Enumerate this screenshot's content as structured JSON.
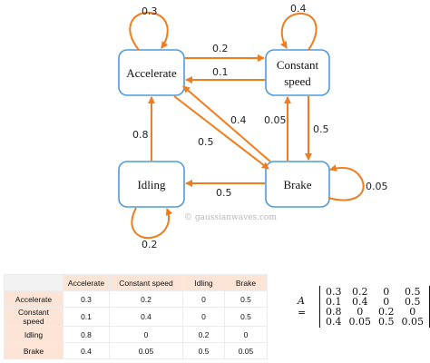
{
  "diagram": {
    "states": {
      "accelerate": "Accelerate",
      "constant_line1": "Constant",
      "constant_line2": "speed",
      "idling": "Idling",
      "brake": "Brake"
    },
    "edges": {
      "acc_self": "0.3",
      "const_self": "0.4",
      "acc_to_const": "0.2",
      "const_to_acc": "0.1",
      "brake_to_acc": "0.4",
      "acc_to_brake": "0.5",
      "brake_to_const": "0.05",
      "const_to_brake": "0.5",
      "idle_to_acc": "0.8",
      "brake_to_idle": "0.5",
      "brake_self": "0.05",
      "idle_self": "0.2"
    },
    "watermark": "© gaussianwaves.com",
    "colors": {
      "node_border": "#4f9bd9",
      "arrow": "#f07c1d"
    }
  },
  "table": {
    "columns": [
      "Accelerate",
      "Constant speed",
      "Idling",
      "Brake"
    ],
    "rows": [
      {
        "label": "Accelerate",
        "values": [
          "0.3",
          "0.2",
          "0",
          "0.5"
        ]
      },
      {
        "label": "Constant speed",
        "values": [
          "0.1",
          "0.4",
          "0",
          "0.5"
        ]
      },
      {
        "label": "Idling",
        "values": [
          "0.8",
          "0",
          "0.2",
          "0"
        ]
      },
      {
        "label": "Brake",
        "values": [
          "0.4",
          "0.05",
          "0.5",
          "0.05"
        ]
      }
    ],
    "colors": {
      "header_bg": "#fce4d6"
    }
  },
  "matrix": {
    "lhs": "A =",
    "rows": [
      [
        "0.3",
        "0.2",
        "0",
        "0.5"
      ],
      [
        "0.1",
        "0.4",
        "0",
        "0.5"
      ],
      [
        "0.8",
        "0",
        "0.2",
        "0"
      ],
      [
        "0.4",
        "0.05",
        "0.5",
        "0.05"
      ]
    ]
  }
}
